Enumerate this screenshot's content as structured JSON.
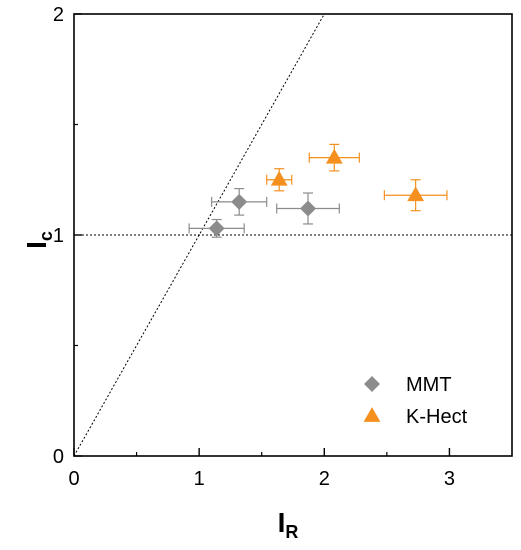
{
  "chart_data": {
    "type": "scatter",
    "xlabel": "I",
    "xlabel_sub": "R",
    "ylabel": "I",
    "ylabel_sub": "c",
    "xlim": [
      0,
      3.5
    ],
    "ylim": [
      0,
      2
    ],
    "x_ticks": [
      0,
      1,
      2,
      3
    ],
    "y_ticks": [
      0,
      1,
      2
    ],
    "reference_lines": [
      {
        "kind": "horizontal",
        "y": 1,
        "style": "dotted"
      },
      {
        "kind": "diagonal",
        "slope": 1,
        "style": "dotted"
      }
    ],
    "legend_position": "bottom-right",
    "colors": {
      "MMT": "#8c8c8c",
      "K-Hect": "#f5901e"
    },
    "series": [
      {
        "name": "MMT",
        "marker": "diamond",
        "points": [
          {
            "x": 1.14,
            "y": 1.03,
            "xerr": 0.22,
            "yerr": 0.04
          },
          {
            "x": 1.32,
            "y": 1.15,
            "xerr": 0.22,
            "yerr": 0.06
          },
          {
            "x": 1.87,
            "y": 1.12,
            "xerr": 0.25,
            "yerr": 0.07
          }
        ]
      },
      {
        "name": "K-Hect",
        "marker": "triangle",
        "points": [
          {
            "x": 1.64,
            "y": 1.25,
            "xerr": 0.1,
            "yerr": 0.05
          },
          {
            "x": 2.08,
            "y": 1.35,
            "xerr": 0.2,
            "yerr": 0.06
          },
          {
            "x": 2.73,
            "y": 1.18,
            "xerr": 0.25,
            "yerr": 0.07
          }
        ]
      }
    ]
  }
}
